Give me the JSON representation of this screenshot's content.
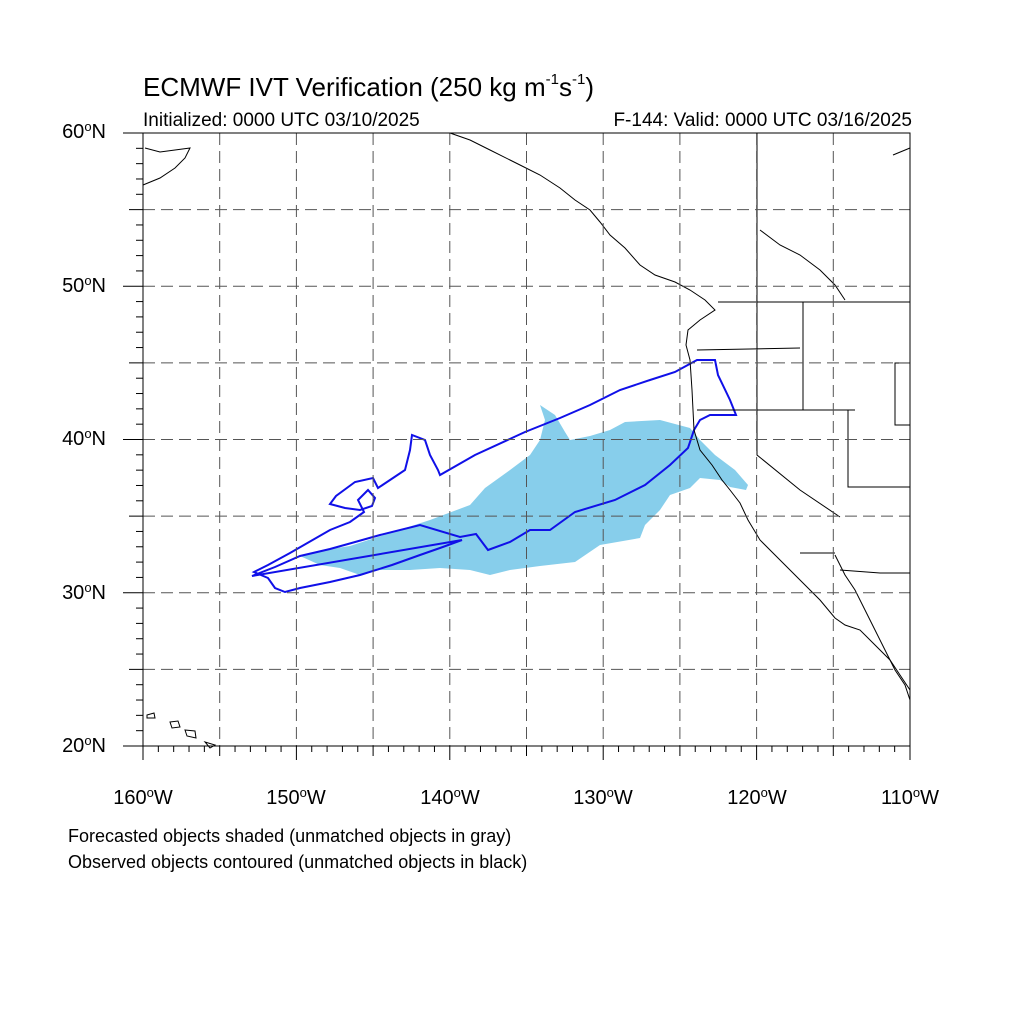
{
  "map": {
    "title_main": "ECMWF IVT Verification (250 kg m",
    "title_exp1": "-1",
    "title_mid": "s",
    "title_exp2": "-1",
    "title_end": ")",
    "init_text": "Initialized: 0000 UTC 03/10/2025",
    "valid_text": "F-144: Valid: 0000 UTC 03/16/2025",
    "lat_labels": [
      "60",
      "50",
      "40",
      "30",
      "20"
    ],
    "lat_suffix": "N",
    "lon_labels": [
      "160",
      "150",
      "140",
      "130",
      "120",
      "110"
    ],
    "lon_suffix": "W",
    "degree_symbol": "o",
    "extent": {
      "lon_min": -160,
      "lon_max": -110,
      "lat_min": 20,
      "lat_max": 60
    },
    "colors": {
      "forecast_fill": "#87CEEB",
      "observed_contour": "#1010E8",
      "coast": "#000000",
      "grid": "#555555"
    },
    "legend_line1": "Forecasted objects shaded (unmatched objects in gray)",
    "legend_line2": "Observed objects contoured (unmatched objects in black)"
  }
}
